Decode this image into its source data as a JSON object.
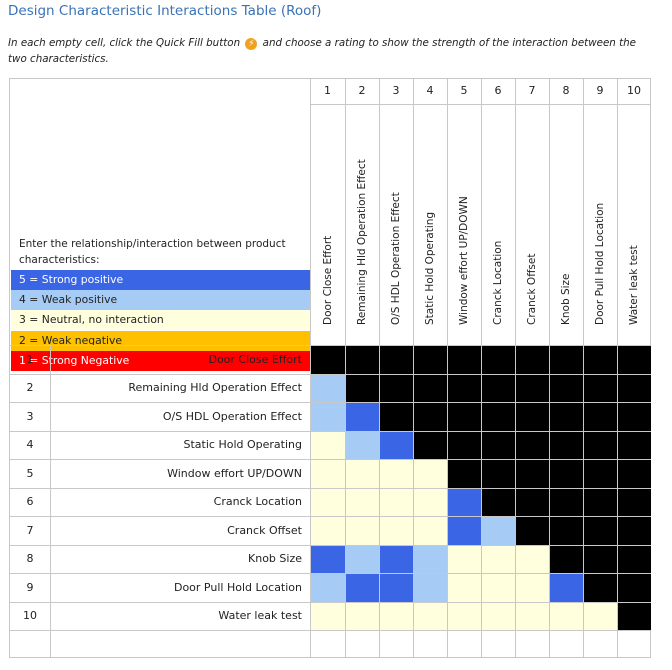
{
  "title": "Design Characteristic Interactions Table (Roof)",
  "instructions": {
    "before_icon": "In each empty cell, click the Quick Fill button",
    "after_icon": "and choose a rating to show the strength of the interaction between the two characteristics."
  },
  "quick_fill_icon": "quick-fill-lightning-icon",
  "prompt": "Enter the relationship/interaction between product characteristics:",
  "legend": [
    {
      "label": "5 = Strong positive",
      "color": "#3a66e6",
      "text_color": "#ffffff"
    },
    {
      "label": "4 = Weak positive",
      "color": "#a6cbf5",
      "text_color": "#222222"
    },
    {
      "label": "3 = Neutral, no interaction",
      "color": "#ffffde",
      "text_color": "#222222"
    },
    {
      "label": "2 = Weak negative",
      "color": "#ffc000",
      "text_color": "#222222"
    },
    {
      "label": "1 = Strong Negative",
      "color": "#ff0000",
      "text_color": "#ffffff"
    }
  ],
  "characteristics": [
    {
      "num": "1",
      "name": "Door Close Effort"
    },
    {
      "num": "2",
      "name": "Remaining Hld Operation Effect"
    },
    {
      "num": "3",
      "name": "O/S HDL Operation Effect"
    },
    {
      "num": "4",
      "name": "Static Hold Operating"
    },
    {
      "num": "5",
      "name": "Window effort UP/DOWN"
    },
    {
      "num": "6",
      "name": "Cranck Location"
    },
    {
      "num": "7",
      "name": "Cranck Offset"
    },
    {
      "num": "8",
      "name": "Knob Size"
    },
    {
      "num": "9",
      "name": "Door Pull Hold Location"
    },
    {
      "num": "10",
      "name": "Water leak test"
    }
  ],
  "ratings": [
    [],
    [
      4
    ],
    [
      4,
      5
    ],
    [
      3,
      4,
      5
    ],
    [
      3,
      3,
      3,
      3
    ],
    [
      3,
      3,
      3,
      3,
      5
    ],
    [
      3,
      3,
      3,
      3,
      5,
      4
    ],
    [
      5,
      4,
      5,
      4,
      3,
      3,
      3
    ],
    [
      4,
      5,
      5,
      4,
      3,
      3,
      3,
      5
    ],
    [
      3,
      3,
      3,
      3,
      3,
      3,
      3,
      3,
      3
    ]
  ],
  "colors": {
    "blocked": "#000000",
    "grid": "#c8c8c8",
    "rating_5": "#3a66e6",
    "rating_4": "#a6cbf5",
    "rating_3": "#ffffde"
  }
}
